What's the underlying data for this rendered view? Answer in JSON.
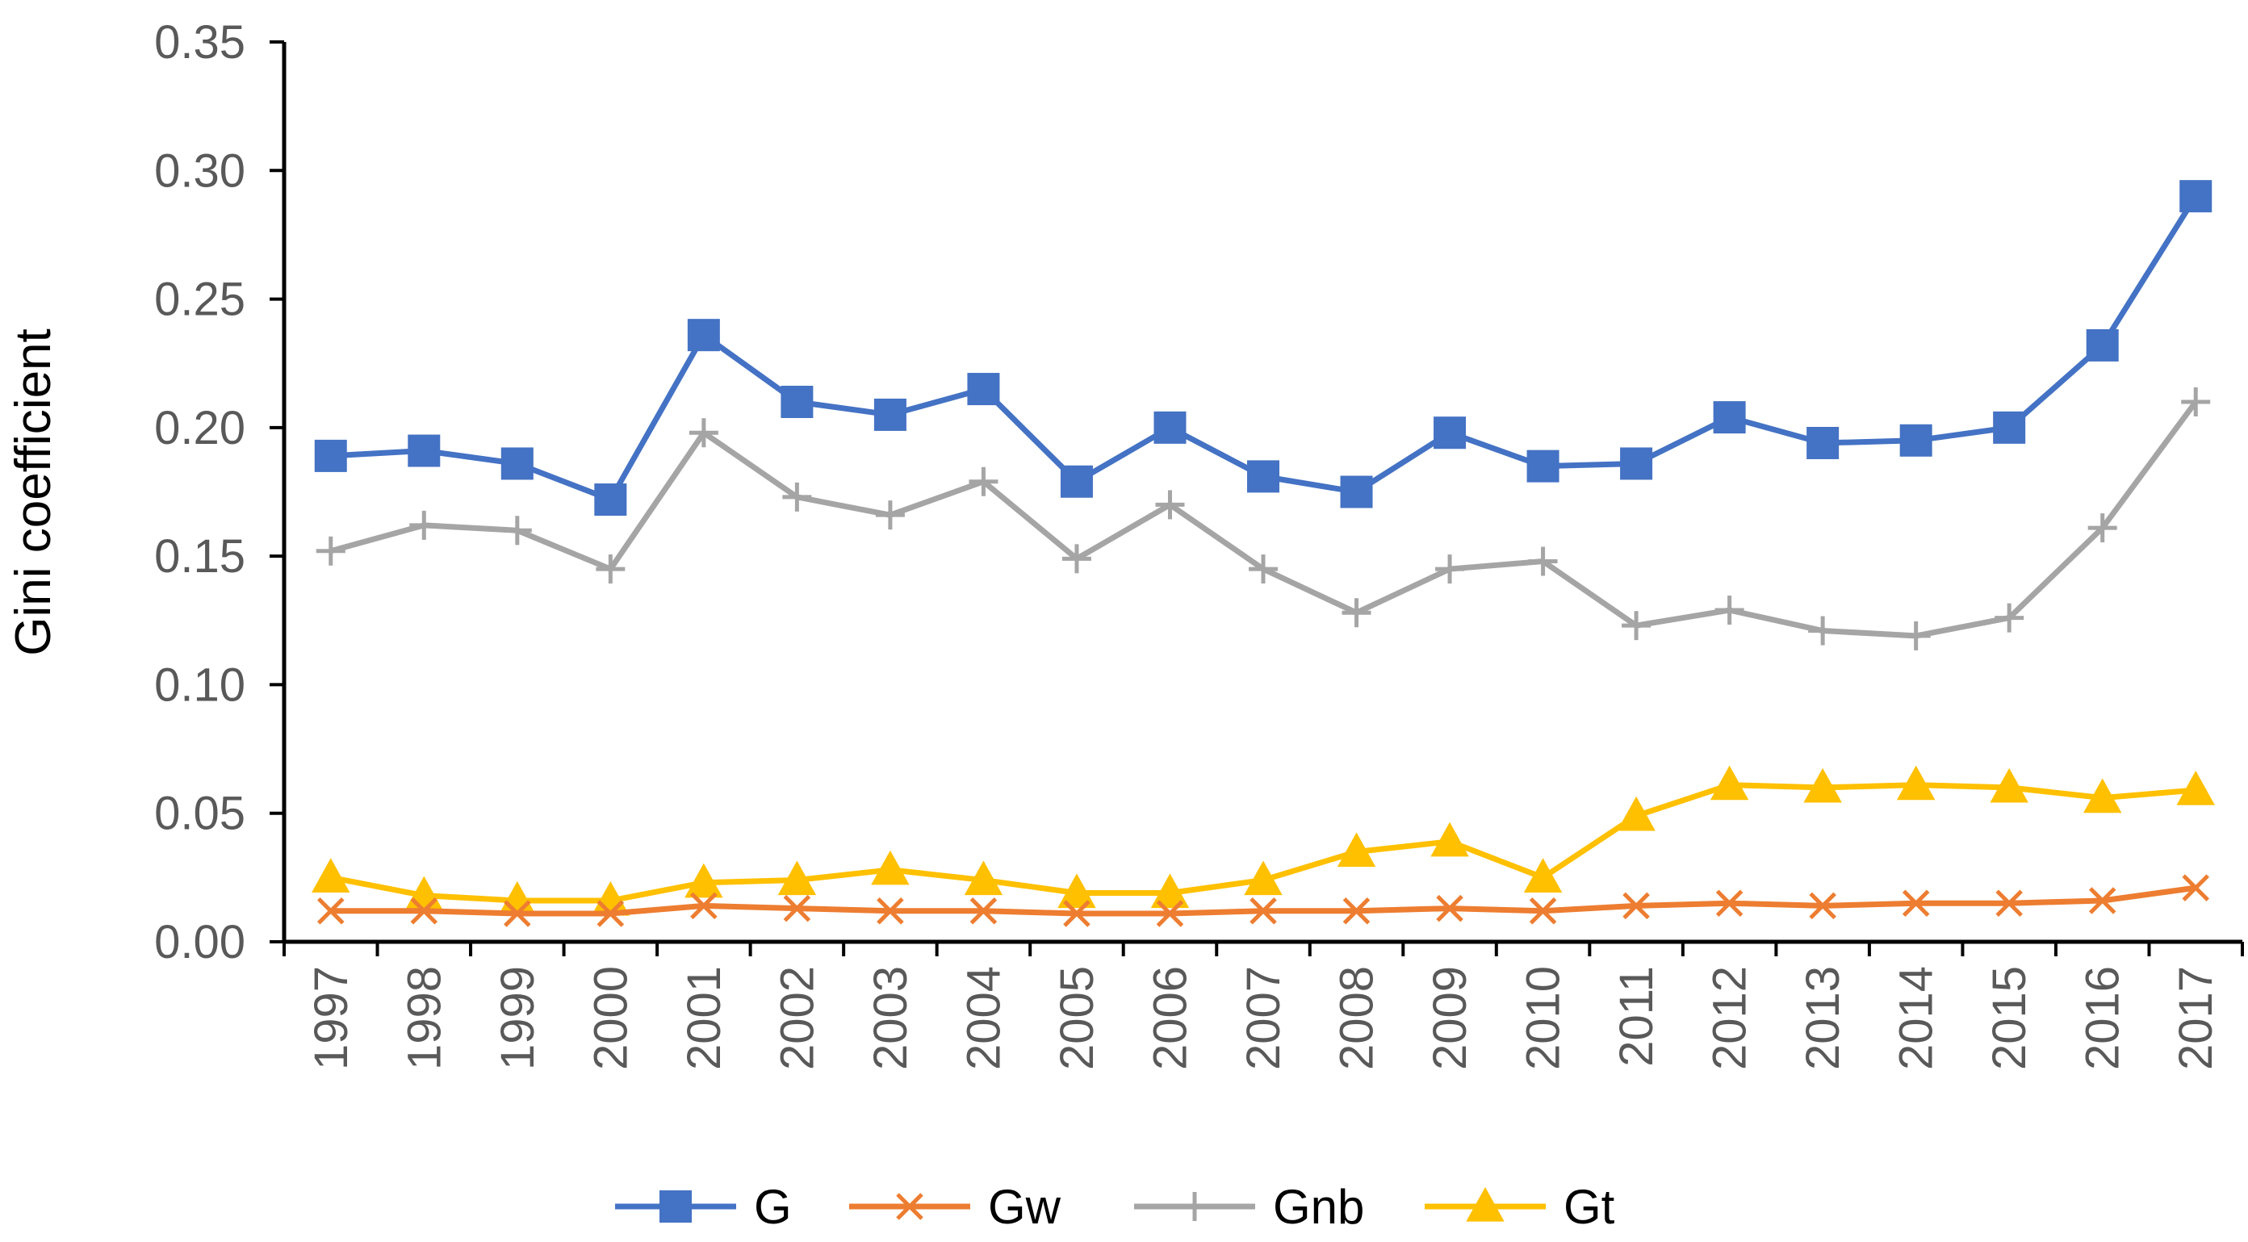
{
  "chart_data": {
    "type": "line",
    "title": "",
    "xlabel": "",
    "ylabel": "Gini coefficient",
    "ylim": [
      0,
      0.35
    ],
    "y_ticks": [
      "0.00",
      "0.05",
      "0.10",
      "0.15",
      "0.20",
      "0.25",
      "0.30",
      "0.35"
    ],
    "grid": false,
    "legend_position": "bottom",
    "categories": [
      "1997",
      "1998",
      "1999",
      "2000",
      "2001",
      "2002",
      "2003",
      "2004",
      "2005",
      "2006",
      "2007",
      "2008",
      "2009",
      "2010",
      "2011",
      "2012",
      "2013",
      "2014",
      "2015",
      "2016",
      "2017"
    ],
    "series": [
      {
        "name": "G",
        "color": "#4472C4",
        "marker": "square",
        "values": [
          0.189,
          0.191,
          0.186,
          0.172,
          0.236,
          0.21,
          0.205,
          0.215,
          0.179,
          0.2,
          0.181,
          0.175,
          0.198,
          0.185,
          0.186,
          0.204,
          0.194,
          0.195,
          0.2,
          0.232,
          0.29
        ]
      },
      {
        "name": "Gw",
        "color": "#ED7D31",
        "marker": "x",
        "values": [
          0.012,
          0.012,
          0.011,
          0.011,
          0.014,
          0.013,
          0.012,
          0.012,
          0.011,
          0.011,
          0.012,
          0.012,
          0.013,
          0.012,
          0.014,
          0.015,
          0.014,
          0.015,
          0.015,
          0.016,
          0.021
        ]
      },
      {
        "name": "Gnb",
        "color": "#A5A5A5",
        "marker": "plus",
        "values": [
          0.152,
          0.162,
          0.16,
          0.145,
          0.198,
          0.173,
          0.166,
          0.179,
          0.149,
          0.17,
          0.145,
          0.128,
          0.145,
          0.148,
          0.123,
          0.129,
          0.121,
          0.119,
          0.126,
          0.161,
          0.21
        ]
      },
      {
        "name": "Gt",
        "color": "#FFC000",
        "marker": "triangle",
        "values": [
          0.025,
          0.018,
          0.016,
          0.016,
          0.023,
          0.024,
          0.028,
          0.024,
          0.019,
          0.019,
          0.024,
          0.035,
          0.039,
          0.025,
          0.049,
          0.061,
          0.06,
          0.061,
          0.06,
          0.056,
          0.059
        ]
      }
    ]
  }
}
